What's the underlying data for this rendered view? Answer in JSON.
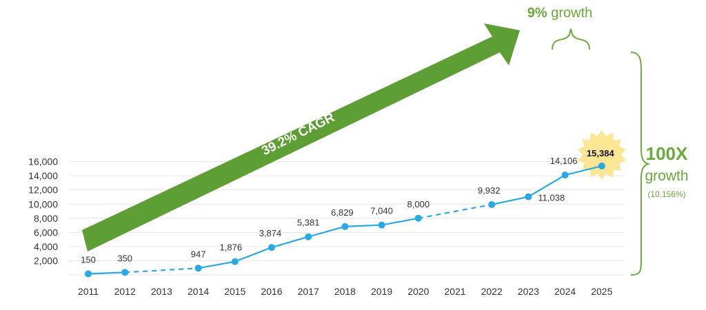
{
  "chart_data": {
    "type": "line",
    "title": "",
    "xlabel": "",
    "ylabel": "",
    "x": [
      "2011",
      "2012",
      "2013",
      "2014",
      "2015",
      "2016",
      "2017",
      "2018",
      "2019",
      "2020",
      "2021",
      "2022",
      "2023",
      "2024",
      "2025"
    ],
    "ylim": [
      0,
      16000
    ],
    "yticks": [
      2000,
      4000,
      6000,
      8000,
      10000,
      12000,
      14000,
      16000
    ],
    "ytick_labels": [
      "2,000",
      "4,000",
      "6,000",
      "8,000",
      "10,000",
      "12,000",
      "14,000",
      "16,000"
    ],
    "grid": true,
    "points": [
      {
        "x": "2011",
        "y": 150,
        "label": "150"
      },
      {
        "x": "2012",
        "y": 350,
        "label": "350"
      },
      {
        "x": "2014",
        "y": 947,
        "label": "947"
      },
      {
        "x": "2015",
        "y": 1876,
        "label": "1,876"
      },
      {
        "x": "2016",
        "y": 3874,
        "label": "3,874"
      },
      {
        "x": "2017",
        "y": 5381,
        "label": "5,381"
      },
      {
        "x": "2018",
        "y": 6829,
        "label": "6,829"
      },
      {
        "x": "2019",
        "y": 7040,
        "label": "7,040"
      },
      {
        "x": "2020",
        "y": 8000,
        "label": "8,000"
      },
      {
        "x": "2022",
        "y": 9932,
        "label": "9,932"
      },
      {
        "x": "2023",
        "y": 11038,
        "label": "11,038"
      },
      {
        "x": "2024",
        "y": 14106,
        "label": "14,106"
      },
      {
        "x": "2025",
        "y": 15384,
        "label": "15,384",
        "highlight": true
      }
    ],
    "segments": [
      {
        "from": "2011",
        "to": "2012",
        "style": "solid"
      },
      {
        "from": "2012",
        "to": "2014",
        "style": "dashed"
      },
      {
        "from": "2014",
        "to": "2020",
        "style": "solid"
      },
      {
        "from": "2020",
        "to": "2022",
        "style": "dashed"
      },
      {
        "from": "2022",
        "to": "2025",
        "style": "solid"
      }
    ],
    "annotations": {
      "cagr_arrow": "39.2% CAGR",
      "growth_top_bold": "9%",
      "growth_top_rest": " growth",
      "growth_right_bold": "100X",
      "growth_right_word": "growth",
      "growth_right_pct": "(10,156%)"
    },
    "colors": {
      "line": "#29a8e6",
      "arrow": "#5d9e35",
      "annotation": "#6aaa3a",
      "highlight": "#fbe694",
      "grid": "#e6e6e6"
    }
  }
}
